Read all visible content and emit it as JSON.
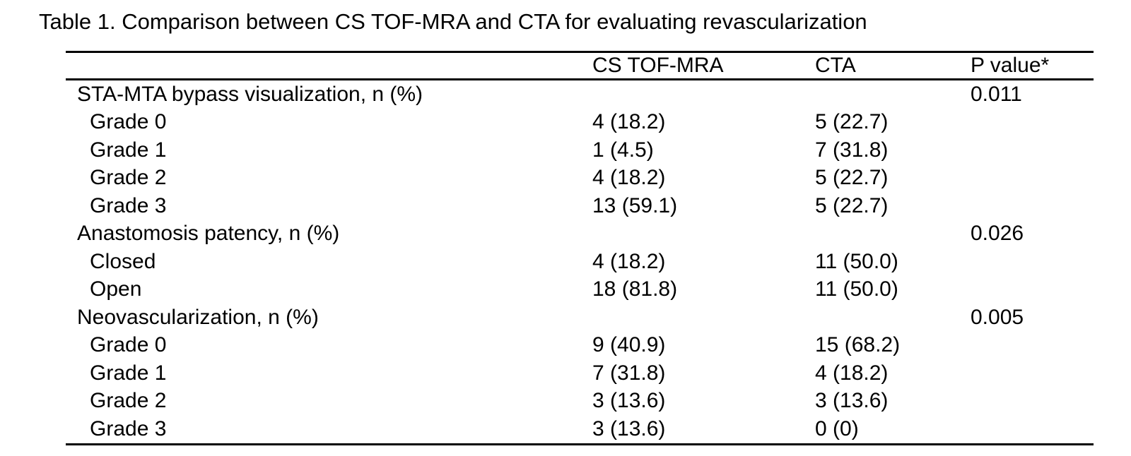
{
  "title": "Table 1. Comparison between CS TOF-MRA and CTA for evaluating revascularization",
  "table": {
    "columns": [
      "",
      "CS TOF-MRA",
      "CTA",
      "P value*"
    ],
    "rows": [
      {
        "label": "STA-MTA bypass visualization, n (%)",
        "indent": false,
        "cs_tof_mra": "",
        "cta": "",
        "p_value": "0.011"
      },
      {
        "label": "Grade 0",
        "indent": true,
        "cs_tof_mra": "4 (18.2)",
        "cta": "5 (22.7)",
        "p_value": ""
      },
      {
        "label": "Grade 1",
        "indent": true,
        "cs_tof_mra": "1 (4.5)",
        "cta": "7 (31.8)",
        "p_value": ""
      },
      {
        "label": "Grade 2",
        "indent": true,
        "cs_tof_mra": "4 (18.2)",
        "cta": "5 (22.7)",
        "p_value": ""
      },
      {
        "label": "Grade 3",
        "indent": true,
        "cs_tof_mra": "13 (59.1)",
        "cta": "5 (22.7)",
        "p_value": ""
      },
      {
        "label": "Anastomosis patency, n (%)",
        "indent": false,
        "cs_tof_mra": "",
        "cta": "",
        "p_value": "0.026"
      },
      {
        "label": "Closed",
        "indent": true,
        "cs_tof_mra": "4 (18.2)",
        "cta": "11 (50.0)",
        "p_value": ""
      },
      {
        "label": "Open",
        "indent": true,
        "cs_tof_mra": "18 (81.8)",
        "cta": "11 (50.0)",
        "p_value": ""
      },
      {
        "label": "Neovascularization, n (%)",
        "indent": false,
        "cs_tof_mra": "",
        "cta": "",
        "p_value": "0.005"
      },
      {
        "label": "Grade 0",
        "indent": true,
        "cs_tof_mra": "9 (40.9)",
        "cta": "15 (68.2)",
        "p_value": ""
      },
      {
        "label": "Grade 1",
        "indent": true,
        "cs_tof_mra": "7 (31.8)",
        "cta": "4 (18.2)",
        "p_value": ""
      },
      {
        "label": "Grade 2",
        "indent": true,
        "cs_tof_mra": "3 (13.6)",
        "cta": "3 (13.6)",
        "p_value": ""
      },
      {
        "label": "Grade 3",
        "indent": true,
        "cs_tof_mra": "3 (13.6)",
        "cta": "0 (0)",
        "p_value": ""
      }
    ]
  },
  "colors": {
    "text": "#000000",
    "background": "#ffffff",
    "rule": "#000000"
  }
}
